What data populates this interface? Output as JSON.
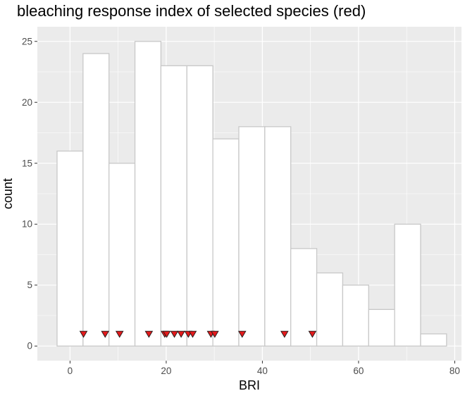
{
  "chart_data": {
    "type": "histogram",
    "title": "bleaching response index of selected species (red)",
    "xlabel": "BRI",
    "ylabel": "count",
    "xlim": [
      -6.8,
      81.4
    ],
    "ylim": [
      -1.2,
      26.2
    ],
    "x_ticks": [
      0,
      20,
      40,
      60,
      80
    ],
    "y_ticks": [
      0,
      5,
      10,
      15,
      20,
      25
    ],
    "bins": [
      {
        "x0": -2.7,
        "x1": 2.7,
        "count": 16
      },
      {
        "x0": 2.7,
        "x1": 8.1,
        "count": 24
      },
      {
        "x0": 8.1,
        "x1": 13.5,
        "count": 15
      },
      {
        "x0": 13.5,
        "x1": 18.9,
        "count": 25
      },
      {
        "x0": 18.9,
        "x1": 24.3,
        "count": 23
      },
      {
        "x0": 24.3,
        "x1": 29.7,
        "count": 23
      },
      {
        "x0": 29.7,
        "x1": 35.1,
        "count": 17
      },
      {
        "x0": 35.1,
        "x1": 40.5,
        "count": 18
      },
      {
        "x0": 40.5,
        "x1": 45.9,
        "count": 18
      },
      {
        "x0": 45.9,
        "x1": 51.3,
        "count": 8
      },
      {
        "x0": 51.3,
        "x1": 56.7,
        "count": 6
      },
      {
        "x0": 56.7,
        "x1": 62.1,
        "count": 5
      },
      {
        "x0": 62.1,
        "x1": 67.5,
        "count": 3
      },
      {
        "x0": 67.5,
        "x1": 72.9,
        "count": 10
      },
      {
        "x0": 72.9,
        "x1": 78.3,
        "count": 1
      }
    ],
    "selected_species_bri": [
      2.8,
      7.3,
      10.3,
      16.4,
      19.7,
      20.1,
      21.7,
      23.1,
      24.6,
      25.5,
      29.3,
      30.1,
      35.8,
      44.6,
      50.4
    ],
    "marker_y": 1,
    "colors": {
      "panel_background": "#ebebeb",
      "grid_major": "#ffffff",
      "bar_fill": "#ffffff",
      "bar_stroke": "#c8c8c8",
      "marker_fill": "#e31a1c",
      "marker_stroke": "#1a1a1a"
    },
    "grid": true
  }
}
